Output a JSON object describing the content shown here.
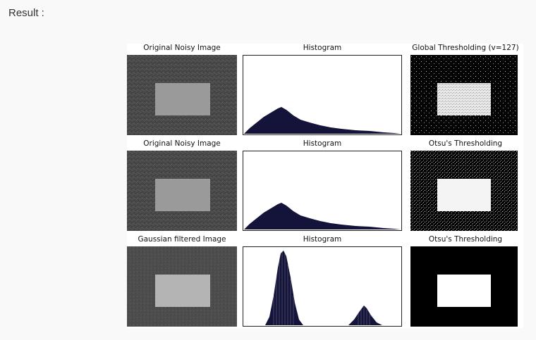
{
  "page": {
    "result_label": "Result :"
  },
  "figure": {
    "rows": [
      {
        "titles": [
          "Original Noisy Image",
          "Histogram",
          "Global Thresholding (v=127)"
        ],
        "histogram": "noisy",
        "threshold": "global"
      },
      {
        "titles": [
          "Original Noisy Image",
          "Histogram",
          "Otsu's Thresholding"
        ],
        "histogram": "noisy",
        "threshold": "otsu"
      },
      {
        "titles": [
          "Gaussian filtered Image",
          "Histogram",
          "Otsu's Thresholding"
        ],
        "histogram": "filtered",
        "threshold": "clean"
      }
    ],
    "colors": {
      "noisy_bg": "#4a4a4a",
      "noisy_rect": "#9a9a9a",
      "filtered_bg": "#4d4d4d",
      "filtered_rect": "#b4b4b4",
      "hist_fill": "#14143a",
      "binary_black": "#000000",
      "binary_white": "#ffffff"
    }
  }
}
